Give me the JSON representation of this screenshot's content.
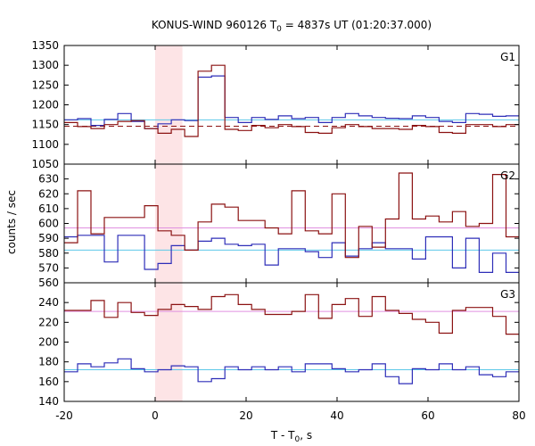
{
  "chart_data": {
    "type": "line",
    "title": {
      "main": "KONUS-WIND 960126 T",
      "sub": "0",
      "rest": " = 4837s UT (01:20:37.000)"
    },
    "xlabel": {
      "main": "T - T",
      "sub": "0",
      "rest": ", s"
    },
    "ylabel": "counts / sec",
    "xlim": [
      -20,
      80
    ],
    "xticks": [
      "-20",
      "0",
      "20",
      "40",
      "60",
      "80"
    ],
    "highlight": {
      "x0": 0,
      "x1": 6,
      "color": "#fde4e6"
    },
    "bin_width": 2.944,
    "x_start": -20,
    "panels": [
      {
        "name": "G1",
        "ylim": [
          1050,
          1350
        ],
        "yticks": [
          "1350",
          "1300",
          "1250",
          "1200",
          "1150",
          "1100",
          "1050"
        ],
        "series": [
          {
            "color": "#2e2eb8",
            "background": 1162,
            "background_color": "#5cc8e8",
            "background_dash": false,
            "values": [
              1162,
              1165,
              1148,
              1163,
              1178,
              1158,
              1140,
              1152,
              1162,
              1160,
              1270,
              1273,
              1168,
              1155,
              1168,
              1163,
              1172,
              1165,
              1168,
              1155,
              1168,
              1178,
              1172,
              1168,
              1166,
              1165,
              1172,
              1168,
              1158,
              1155,
              1178,
              1176,
              1171,
              1172,
              1165,
              1158
            ]
          },
          {
            "color": "#8b1212",
            "background": 1146,
            "background_color": "#8b1212",
            "background_dash": true,
            "values": [
              1155,
              1145,
              1140,
              1150,
              1158,
              1160,
              1140,
              1128,
              1138,
              1120,
              1285,
              1300,
              1138,
              1135,
              1148,
              1142,
              1150,
              1145,
              1130,
              1128,
              1142,
              1150,
              1145,
              1140,
              1140,
              1138,
              1148,
              1145,
              1130,
              1128,
              1150,
              1150,
              1145,
              1150,
              1145,
              1140
            ]
          }
        ]
      },
      {
        "name": "G2",
        "ylim": [
          560,
          640
        ],
        "yticks": [
          "630",
          "620",
          "610",
          "600",
          "590",
          "580",
          "570",
          "560"
        ],
        "series": [
          {
            "color": "#2e2eb8",
            "background": 582,
            "background_color": "#5cc8e8",
            "background_dash": false,
            "values": [
              591,
              592,
              592,
              574,
              592,
              592,
              569,
              573,
              585,
              582,
              588,
              590,
              586,
              585,
              586,
              572,
              583,
              583,
              581,
              577,
              587,
              578,
              583,
              587,
              583,
              583,
              576,
              591,
              591,
              570,
              590,
              567,
              580,
              567,
              575,
              590,
              583,
              591,
              581,
              580,
              582,
              582
            ]
          },
          {
            "color": "#8b1212",
            "background": 597,
            "background_color": "#e090e0",
            "background_dash": false,
            "values": [
              587,
              622,
              593,
              604,
              604,
              604,
              612,
              595,
              592,
              582,
              601,
              613,
              611,
              602,
              602,
              597,
              593,
              622,
              595,
              593,
              620,
              577,
              598,
              584,
              603,
              634,
              603,
              605,
              601,
              608,
              598,
              600,
              633,
              591,
              611,
              613,
              608,
              592,
              602,
              597,
              598,
              611,
              619
            ]
          }
        ]
      },
      {
        "name": "G3",
        "ylim": [
          140,
          260
        ],
        "yticks": [
          "240",
          "220",
          "200",
          "180",
          "160",
          "140"
        ],
        "series": [
          {
            "color": "#2e2eb8",
            "background": 172,
            "background_color": "#5cc8e8",
            "background_dash": false,
            "values": [
              170,
              178,
              175,
              179,
              183,
              173,
              170,
              172,
              176,
              175,
              160,
              163,
              175,
              172,
              175,
              172,
              175,
              170,
              178,
              178,
              173,
              170,
              172,
              178,
              165,
              158,
              173,
              172,
              178,
              172,
              175,
              167,
              165,
              170,
              172,
              158,
              161,
              175,
              168,
              175,
              172,
              173
            ]
          },
          {
            "color": "#8b1212",
            "background": 231,
            "background_color": "#e090e0",
            "background_dash": false,
            "values": [
              232,
              232,
              242,
              225,
              240,
              230,
              227,
              233,
              238,
              236,
              233,
              246,
              248,
              238,
              233,
              228,
              228,
              231,
              248,
              224,
              238,
              244,
              226,
              246,
              232,
              229,
              223,
              220,
              209,
              232,
              235,
              235,
              226,
              208,
              234,
              228,
              232,
              224,
              233,
              221,
              238,
              232,
              226,
              225
            ]
          }
        ]
      }
    ]
  }
}
